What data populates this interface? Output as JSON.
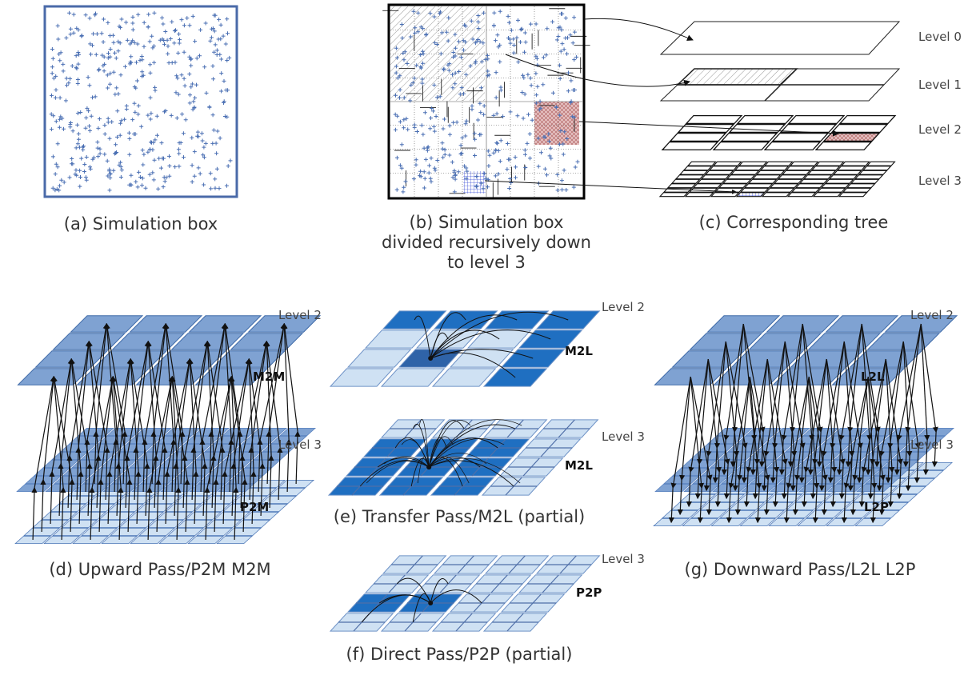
{
  "panels": {
    "a": {
      "caption": "(a) Simulation box"
    },
    "b": {
      "caption_lines": [
        "(b) Simulation box",
        "divided recursively down",
        "to level 3"
      ]
    },
    "c": {
      "caption": "(c) Corresponding tree",
      "levels": [
        "Level 0",
        "Level 1",
        "Level 2",
        "Level 3"
      ]
    },
    "d": {
      "caption": "(d) Upward Pass/P2M M2M",
      "level_top": "Level 2",
      "level_bottom": "Level 3",
      "op_top": "M2M",
      "op_bottom": "P2M"
    },
    "e": {
      "caption": "(e) Transfer Pass/M2L (partial)",
      "level_top": "Level 2",
      "level_bottom": "Level 3",
      "op_top": "M2L",
      "op_bottom": "M2L"
    },
    "f": {
      "caption": "(f) Direct Pass/P2P (partial)",
      "level": "Level 3",
      "op": "P2P"
    },
    "g": {
      "caption": "(g) Downward Pass/L2L L2P",
      "level_top": "Level 2",
      "level_bottom": "Level 3",
      "op_top": "L2L",
      "op_bottom": "L2P"
    }
  },
  "colors": {
    "particle": "#4a6fb3",
    "box_border_a": "#4a6aa8",
    "dark_blue": "#1f6fc1",
    "mid_blue": "#7fa2d2",
    "light_blue": "#cfe1f3",
    "red_hatch": "#c78a8a",
    "blue_hatch": "#5566dd"
  }
}
